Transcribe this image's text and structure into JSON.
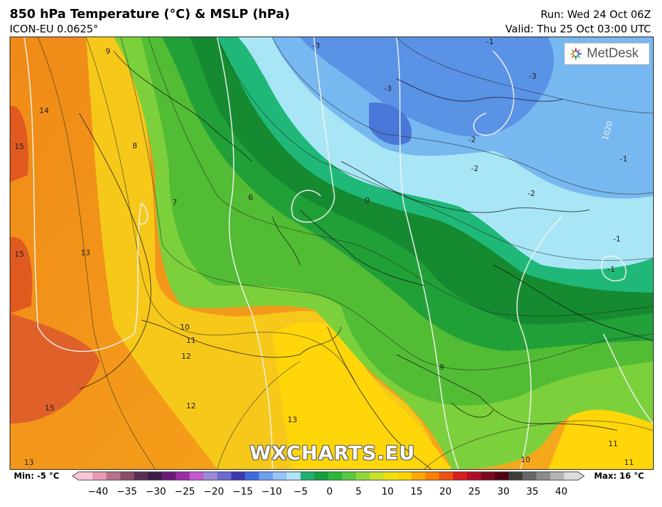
{
  "header": {
    "title": "850 hPa Temperature (°C) & MSLP (hPa)",
    "model": "ICON-EU 0.0625°",
    "run": "Run: Wed 24 Oct 06Z",
    "valid": "Valid: Thu 25 Oct 03:00 UTC"
  },
  "logo": {
    "text": "MetDesk"
  },
  "watermark": "WXCHARTS.EU",
  "legend": {
    "min_label": "Min: -5 °C",
    "max_label": "Max: 16 °C",
    "ticks": [
      "−40",
      "−35",
      "−30",
      "−25",
      "−20",
      "−15",
      "−10",
      "−5",
      "0",
      "5",
      "10",
      "15",
      "20",
      "25",
      "30",
      "35",
      "40"
    ],
    "range": [
      -40,
      40
    ],
    "colors": [
      "#f9c6d7",
      "#e89ab5",
      "#b9728a",
      "#8a4c66",
      "#5a2d55",
      "#3d1a4a",
      "#6b1a7a",
      "#9c2aa8",
      "#c45ad0",
      "#9b8ad8",
      "#6b6ad0",
      "#3a3ab0",
      "#3e6ae0",
      "#6fa0f0",
      "#96c6f7",
      "#b0e4fa",
      "#20b070",
      "#15a040",
      "#2eb838",
      "#5ac840",
      "#8ed838",
      "#c8e028",
      "#f0e010",
      "#ffd400",
      "#ffa800",
      "#ff8000",
      "#f05010",
      "#d81e1e",
      "#b00c28",
      "#7a0818",
      "#500010",
      "#3c3c3c",
      "#666666",
      "#8c8c8c",
      "#b4b4b4",
      "#dcdcdc"
    ]
  },
  "map": {
    "labels_temperature": [
      {
        "text": "14"
      },
      {
        "text": "15"
      },
      {
        "text": "15"
      },
      {
        "text": "13"
      },
      {
        "text": "15"
      },
      {
        "text": "13"
      },
      {
        "text": "12"
      },
      {
        "text": "12"
      },
      {
        "text": "11"
      },
      {
        "text": "10"
      },
      {
        "text": "13"
      },
      {
        "text": "9"
      },
      {
        "text": "8"
      },
      {
        "text": "7"
      },
      {
        "text": "6"
      },
      {
        "text": "9"
      },
      {
        "text": "10"
      },
      {
        "text": "11"
      },
      {
        "text": "11"
      },
      {
        "text": "-3"
      },
      {
        "text": "-3"
      },
      {
        "text": "-2"
      },
      {
        "text": "-2"
      },
      {
        "text": "-2"
      },
      {
        "text": "-1"
      },
      {
        "text": "-1"
      },
      {
        "text": "-1"
      },
      {
        "text": "0"
      },
      {
        "text": "-3"
      },
      {
        "text": "-1"
      }
    ],
    "labels_pressure": [
      {
        "text": "1020"
      }
    ]
  }
}
